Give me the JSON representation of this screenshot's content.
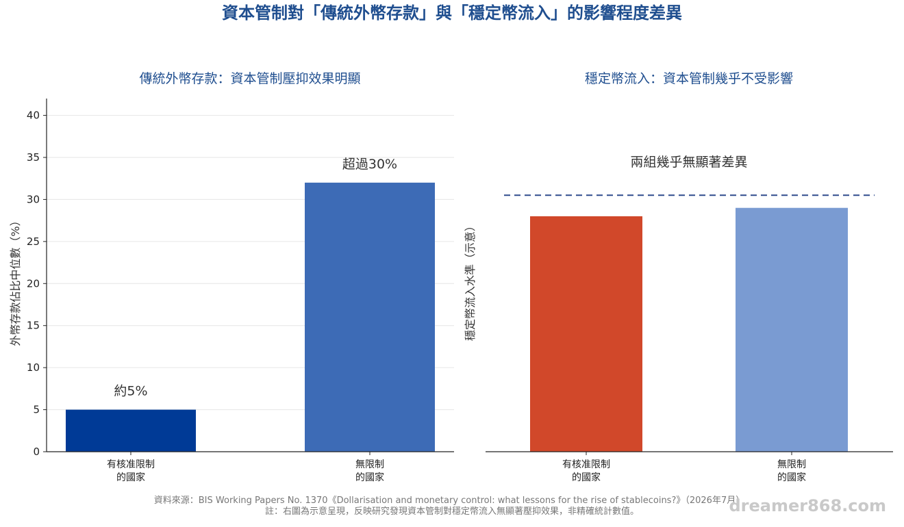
{
  "title": "資本管制對「傳統外幣存款」與「穩定幣流入」的影響程度差異",
  "chart_data": [
    {
      "type": "bar",
      "title": "傳統外幣存款：資本管制壓抑效果明顯",
      "ylabel": "外幣存款佔比中位數（%）",
      "xlabel": "",
      "ylim": [
        0,
        42
      ],
      "yticks": [
        0,
        5,
        10,
        15,
        20,
        25,
        30,
        35,
        40
      ],
      "grid": true,
      "categories": [
        [
          "有核准限制",
          "的國家"
        ],
        [
          "無限制",
          "的國家"
        ]
      ],
      "values": [
        5,
        32
      ],
      "colors": [
        "#003a96",
        "#3d6bb6"
      ],
      "annotations": [
        "約5%",
        "超過30%"
      ]
    },
    {
      "type": "bar",
      "title": "穩定幣流入：資本管制幾乎不受影響",
      "ylabel": "穩定幣流入水準（示意）",
      "xlabel": "",
      "ylim": [
        0,
        42
      ],
      "yticks": [],
      "grid": false,
      "categories": [
        [
          "有核准限制",
          "的國家"
        ],
        [
          "無限制",
          "的國家"
        ]
      ],
      "values": [
        28,
        29
      ],
      "colors": [
        "#d1482a",
        "#7a9bd2"
      ],
      "reference_line": {
        "value": 30.5,
        "style": "dashed",
        "color": "#2e4a8c"
      },
      "annotation": "兩組幾乎無顯著差異"
    }
  ],
  "footer": {
    "source": "資料來源：BIS Working Papers No. 1370《Dollarisation and monetary control: what lessons for the rise of stablecoins?》（2026年7月）",
    "note": "註：右圖為示意呈現，反映研究發現資本管制對穩定幣流入無顯著壓抑效果，非精確統計數值。"
  },
  "watermark": "dreamer868.com"
}
